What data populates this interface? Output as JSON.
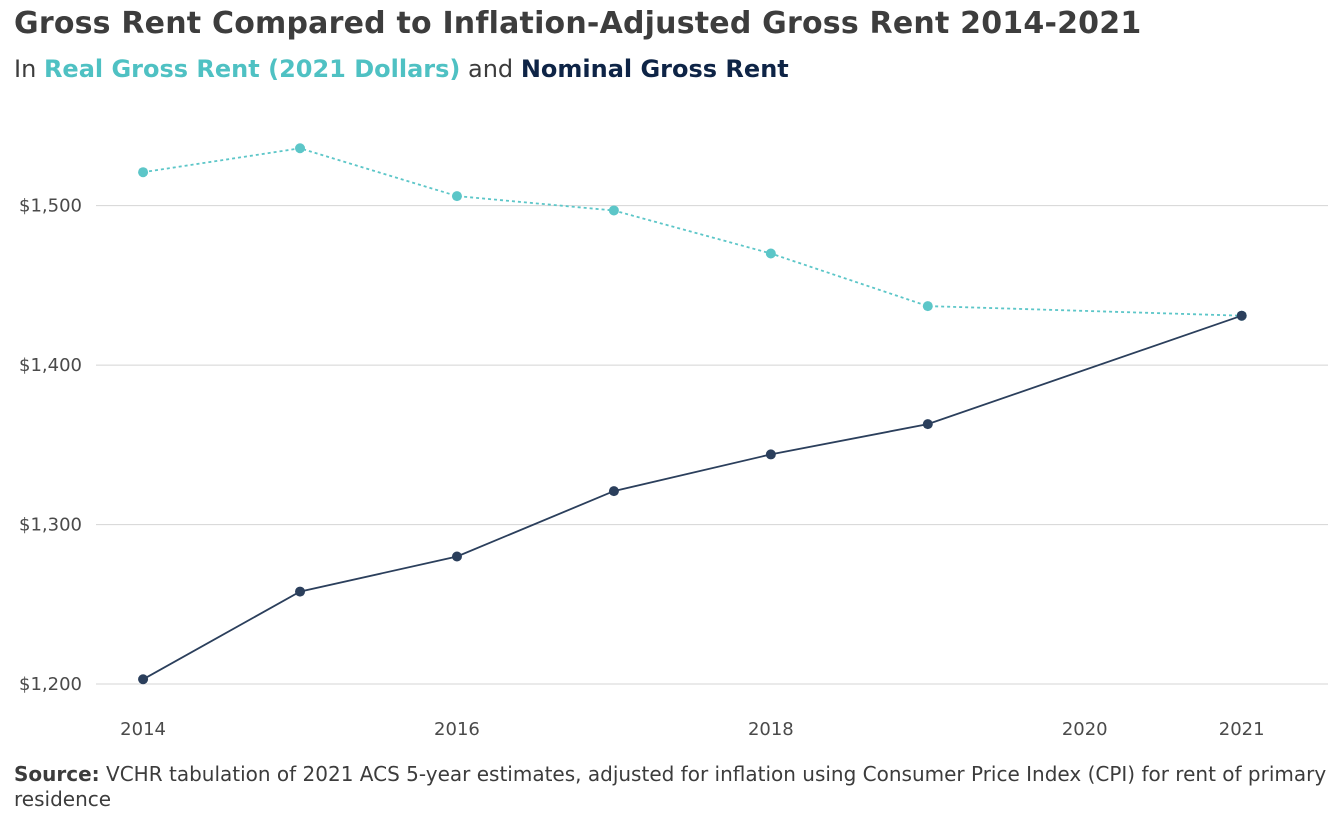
{
  "chart_data": {
    "type": "line",
    "title": "Gross Rent Compared to Inflation-Adjusted Gross Rent 2014-2021",
    "subtitle": {
      "prefix": "In",
      "middle": "and",
      "series_a": "Real Gross Rent (2021 Dollars)",
      "series_b": "Nominal Gross Rent"
    },
    "x": [
      2014,
      2015,
      2016,
      2017,
      2018,
      2019,
      2021
    ],
    "x_ticks": [
      "2014",
      "2016",
      "2018",
      "2020",
      "2021"
    ],
    "x_tick_values": [
      2014,
      2016,
      2018,
      2020,
      2021
    ],
    "xlim": [
      2013.7,
      2021.55
    ],
    "y_ticks": [
      "$1,200",
      "$1,300",
      "$1,400",
      "$1,500"
    ],
    "y_tick_values": [
      1200,
      1300,
      1400,
      1500
    ],
    "ylim": [
      1190,
      1560
    ],
    "grid": true,
    "series": [
      {
        "name": "Real Gross Rent (2021 Dollars)",
        "color": "#5cc6c8",
        "style": "dotted",
        "values": [
          1521,
          1536,
          1506,
          1497,
          1470,
          1437,
          1431
        ]
      },
      {
        "name": "Nominal Gross Rent",
        "color": "#2b3f5c",
        "style": "solid",
        "values": [
          1203,
          1258,
          1280,
          1321,
          1344,
          1363,
          1431
        ]
      }
    ]
  },
  "source": {
    "label": "Source:",
    "text": "VCHR tabulation of 2021 ACS 5-year estimates, adjusted for inflation using Consumer Price Index (CPI) for rent of primary residence"
  }
}
